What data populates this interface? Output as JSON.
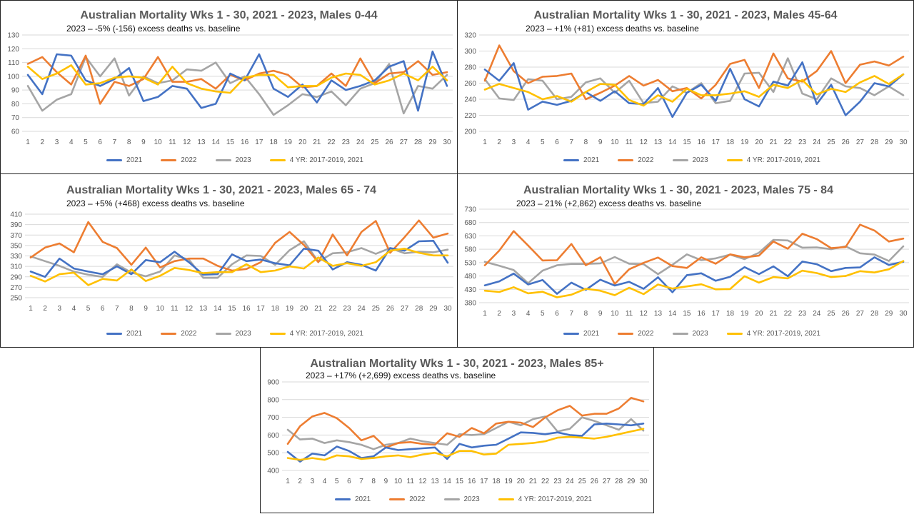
{
  "colors": {
    "2021": "#4472C4",
    "2022": "#ED7D31",
    "2023": "#A5A5A5",
    "baseline": "#FFC000",
    "grid": "#d9d9d9",
    "border": "#222222"
  },
  "chart_data": [
    {
      "type": "line",
      "title": "Australian Mortality Wks 1 - 30, 2021 - 2023, Males 0-44",
      "subtitle": "2023 – -5% (-156)  excess deaths vs. baseline",
      "x": [
        1,
        2,
        3,
        4,
        5,
        6,
        7,
        8,
        9,
        10,
        11,
        12,
        13,
        14,
        15,
        16,
        17,
        18,
        19,
        20,
        21,
        22,
        23,
        24,
        25,
        26,
        27,
        28,
        29,
        30
      ],
      "ylim": [
        60,
        130
      ],
      "yticks": [
        60,
        70,
        80,
        90,
        100,
        110,
        120,
        130
      ],
      "legend_position": "bottom",
      "series": [
        {
          "name": "2021",
          "values": [
            101,
            87,
            116,
            115,
            97,
            93,
            98,
            106,
            82,
            85,
            93,
            91,
            77,
            80,
            102,
            97,
            116,
            91,
            85,
            94,
            81,
            97,
            90,
            93,
            97,
            107,
            111,
            75,
            118,
            93
          ]
        },
        {
          "name": "2022",
          "values": [
            109,
            114,
            103,
            94,
            115,
            80,
            96,
            93,
            98,
            114,
            96,
            96,
            98,
            91,
            101,
            97,
            102,
            104,
            101,
            92,
            93,
            102,
            93,
            113,
            95,
            102,
            103,
            111,
            101,
            103
          ]
        },
        {
          "name": "2023",
          "values": [
            93,
            75,
            83,
            87,
            114,
            100,
            113,
            86,
            100,
            95,
            97,
            105,
            104,
            110,
            95,
            100,
            87,
            72,
            79,
            87,
            85,
            89,
            79,
            91,
            95,
            109,
            73,
            93,
            91,
            101
          ]
        },
        {
          "name": "4 YR: 2017-2019, 2021",
          "values": [
            107,
            98,
            102,
            108,
            94,
            95,
            99,
            100,
            99,
            94,
            107,
            95,
            91,
            89,
            88,
            99,
            101,
            101,
            92,
            93,
            93,
            99,
            102,
            101,
            94,
            97,
            102,
            97,
            107,
            97
          ]
        }
      ]
    },
    {
      "type": "line",
      "title": "Australian Mortality Wks 1 - 30, 2021 - 2023, Males 45-64",
      "subtitle": "2023 – +1% (+81)  excess deaths vs. baseline",
      "x": [
        1,
        2,
        3,
        4,
        5,
        6,
        7,
        8,
        9,
        10,
        11,
        12,
        13,
        14,
        15,
        16,
        17,
        18,
        19,
        20,
        21,
        22,
        23,
        24,
        25,
        26,
        27,
        28,
        29,
        30
      ],
      "ylim": [
        200,
        320
      ],
      "yticks": [
        200,
        220,
        240,
        260,
        280,
        300,
        320
      ],
      "legend_position": "bottom",
      "series": [
        {
          "name": "2021",
          "values": [
            277,
            263,
            285,
            227,
            237,
            233,
            238,
            249,
            238,
            250,
            235,
            234,
            254,
            218,
            248,
            258,
            238,
            278,
            240,
            231,
            262,
            257,
            286,
            234,
            258,
            220,
            237,
            260,
            256,
            271
          ]
        },
        {
          "name": "2022",
          "values": [
            263,
            307,
            275,
            260,
            268,
            269,
            272,
            240,
            248,
            257,
            269,
            257,
            264,
            250,
            254,
            241,
            258,
            284,
            289,
            254,
            297,
            266,
            262,
            275,
            300,
            260,
            283,
            287,
            282,
            293
          ]
        },
        {
          "name": "2023",
          "values": [
            265,
            241,
            239,
            265,
            263,
            240,
            243,
            261,
            266,
            248,
            263,
            235,
            237,
            256,
            248,
            260,
            235,
            238,
            272,
            273,
            249,
            291,
            247,
            240,
            266,
            256,
            254,
            245,
            256,
            245
          ]
        },
        {
          "name": "4 YR: 2017-2019, 2021",
          "values": [
            252,
            259,
            254,
            249,
            240,
            244,
            237,
            249,
            259,
            258,
            239,
            232,
            245,
            237,
            253,
            245,
            245,
            247,
            250,
            243,
            258,
            254,
            264,
            246,
            253,
            249,
            261,
            269,
            259,
            271
          ]
        }
      ]
    },
    {
      "type": "line",
      "title": "Australian Mortality Wks 1 - 30, 2021 - 2023, Males 65 - 74",
      "subtitle": "2023 – +5% (+468)  excess deaths vs. baseline",
      "x": [
        1,
        2,
        3,
        4,
        5,
        6,
        7,
        8,
        9,
        10,
        11,
        12,
        13,
        14,
        15,
        16,
        17,
        18,
        19,
        20,
        21,
        22,
        23,
        24,
        25,
        26,
        27,
        28,
        29,
        30
      ],
      "ylim": [
        250,
        410
      ],
      "yticks": [
        250,
        270,
        290,
        310,
        330,
        350,
        370,
        390,
        410
      ],
      "legend_position": "bottom",
      "series": [
        {
          "name": "2021",
          "values": [
            300,
            290,
            325,
            306,
            300,
            295,
            310,
            295,
            322,
            318,
            338,
            318,
            294,
            295,
            333,
            320,
            323,
            316,
            312,
            344,
            340,
            304,
            318,
            313,
            302,
            345,
            340,
            358,
            359,
            317
          ]
        },
        {
          "name": "2022",
          "values": [
            327,
            346,
            354,
            337,
            395,
            357,
            345,
            313,
            346,
            308,
            320,
            325,
            325,
            311,
            302,
            305,
            318,
            355,
            376,
            351,
            318,
            371,
            331,
            376,
            397,
            336,
            366,
            398,
            365,
            373
          ]
        },
        {
          "name": "2023",
          "values": [
            329,
            320,
            311,
            300,
            294,
            290,
            314,
            298,
            291,
            300,
            331,
            323,
            288,
            288,
            314,
            331,
            330,
            313,
            341,
            358,
            319,
            335,
            337,
            345,
            334,
            345,
            335,
            338,
            337,
            342
          ]
        },
        {
          "name": "4 YR: 2017-2019, 2021",
          "values": [
            292,
            281,
            295,
            298,
            274,
            286,
            283,
            304,
            282,
            292,
            307,
            303,
            297,
            299,
            299,
            314,
            299,
            302,
            310,
            306,
            327,
            311,
            316,
            311,
            318,
            340,
            344,
            336,
            331,
            331
          ]
        }
      ]
    },
    {
      "type": "line",
      "title": "Australian Mortality Wks 1 - 30, 2021 - 2023, Males 75 - 84",
      "subtitle": "2023 – 21% (+2,862)  excess deaths vs. baseline",
      "x": [
        1,
        2,
        3,
        4,
        5,
        6,
        7,
        8,
        9,
        10,
        11,
        12,
        13,
        14,
        15,
        16,
        17,
        18,
        19,
        20,
        21,
        22,
        23,
        24,
        25,
        26,
        27,
        28,
        29,
        30
      ],
      "ylim": [
        380,
        730
      ],
      "yticks": [
        380,
        430,
        480,
        530,
        580,
        630,
        680,
        730
      ],
      "legend_position": "bottom",
      "series": [
        {
          "name": "2021",
          "values": [
            445,
            460,
            489,
            448,
            465,
            413,
            455,
            428,
            466,
            444,
            458,
            432,
            475,
            419,
            483,
            490,
            462,
            477,
            513,
            487,
            516,
            479,
            534,
            524,
            498,
            510,
            512,
            550,
            521,
            533
          ]
        },
        {
          "name": "2022",
          "values": [
            520,
            575,
            648,
            594,
            538,
            539,
            600,
            520,
            550,
            450,
            505,
            529,
            549,
            517,
            510,
            550,
            526,
            561,
            550,
            556,
            609,
            582,
            638,
            618,
            584,
            588,
            672,
            650,
            609,
            620
          ]
        },
        {
          "name": "2023",
          "values": [
            533,
            518,
            502,
            453,
            500,
            520,
            525,
            525,
            527,
            551,
            526,
            524,
            487,
            522,
            561,
            539,
            546,
            560,
            543,
            567,
            615,
            613,
            586,
            587,
            580,
            591,
            565,
            560,
            536,
            591
          ]
        },
        {
          "name": "4 YR: 2017-2019, 2021",
          "values": [
            425,
            420,
            438,
            415,
            421,
            400,
            410,
            432,
            425,
            408,
            436,
            412,
            448,
            433,
            441,
            449,
            430,
            431,
            479,
            455,
            476,
            471,
            500,
            491,
            476,
            480,
            498,
            493,
            505,
            536
          ]
        }
      ]
    },
    {
      "type": "line",
      "title": "Australian Mortality Wks 1 - 30, 2021 - 2023, Males 85+",
      "subtitle": "2023 – +17% (+2,699)  excess deaths vs. baseline",
      "x": [
        1,
        2,
        3,
        4,
        5,
        6,
        7,
        8,
        9,
        10,
        11,
        12,
        13,
        14,
        15,
        16,
        17,
        18,
        19,
        20,
        21,
        22,
        23,
        24,
        25,
        26,
        27,
        28,
        29,
        30
      ],
      "ylim": [
        400,
        900
      ],
      "yticks": [
        400,
        500,
        600,
        700,
        800,
        900
      ],
      "legend_position": "bottom",
      "series": [
        {
          "name": "2021",
          "values": [
            505,
            450,
            495,
            485,
            535,
            510,
            470,
            480,
            530,
            515,
            520,
            525,
            530,
            465,
            550,
            530,
            540,
            545,
            580,
            615,
            612,
            605,
            615,
            600,
            595,
            660,
            665,
            660,
            655,
            665
          ]
        },
        {
          "name": "2022",
          "values": [
            550,
            650,
            705,
            725,
            695,
            640,
            570,
            595,
            530,
            555,
            560,
            550,
            545,
            610,
            590,
            640,
            610,
            665,
            675,
            670,
            645,
            700,
            740,
            765,
            710,
            720,
            720,
            750,
            810,
            790
          ]
        },
        {
          "name": "2023",
          "values": [
            630,
            575,
            580,
            555,
            570,
            560,
            545,
            520,
            545,
            555,
            580,
            565,
            555,
            545,
            605,
            600,
            605,
            640,
            675,
            655,
            690,
            705,
            620,
            635,
            700,
            680,
            655,
            630,
            690,
            625
          ]
        },
        {
          "name": "4 YR: 2017-2019, 2021",
          "values": [
            470,
            460,
            470,
            460,
            485,
            480,
            465,
            470,
            480,
            485,
            475,
            490,
            500,
            480,
            510,
            510,
            490,
            495,
            545,
            550,
            555,
            565,
            585,
            590,
            585,
            580,
            590,
            605,
            620,
            635
          ]
        }
      ]
    }
  ]
}
